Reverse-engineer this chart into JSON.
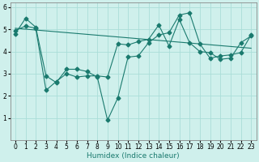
{
  "xlabel": "Humidex (Indice chaleur)",
  "xlim": [
    -0.5,
    23.5
  ],
  "ylim": [
    0,
    6.2
  ],
  "yticks": [
    1,
    2,
    3,
    4,
    5,
    6
  ],
  "xticks": [
    0,
    1,
    2,
    3,
    4,
    5,
    6,
    7,
    8,
    9,
    10,
    11,
    12,
    13,
    14,
    15,
    16,
    17,
    18,
    19,
    20,
    21,
    22,
    23
  ],
  "background_color": "#cff0ec",
  "grid_color": "#aaddd8",
  "line_color": "#1a7a6e",
  "line1_y": [
    4.8,
    5.5,
    5.1,
    2.9,
    2.6,
    3.2,
    3.2,
    3.1,
    2.85,
    0.9,
    1.9,
    3.75,
    3.8,
    4.4,
    4.75,
    4.85,
    5.65,
    5.75,
    4.35,
    3.7,
    3.8,
    3.85,
    3.95,
    4.75
  ],
  "line2_y": [
    4.95,
    5.15,
    5.05,
    2.25,
    2.65,
    3.0,
    2.85,
    2.9,
    2.9,
    2.85,
    4.35,
    4.3,
    4.45,
    4.55,
    5.2,
    4.25,
    5.45,
    4.4,
    4.0,
    3.95,
    3.65,
    3.7,
    4.4,
    4.7
  ],
  "line3_y": [
    5.05,
    4.15
  ],
  "line3_x": [
    0,
    23
  ],
  "marker": "D",
  "marker_size": 2.5,
  "linewidth": 0.8,
  "font_size": 5.5
}
